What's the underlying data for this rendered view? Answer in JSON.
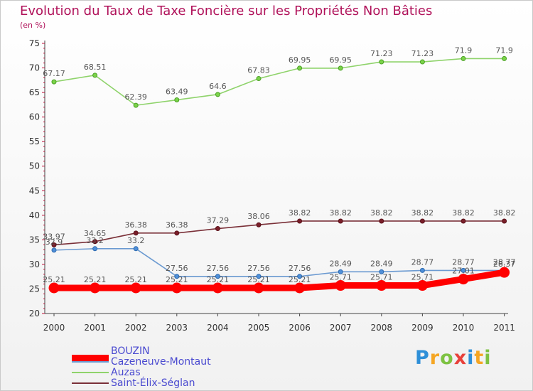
{
  "chart_data": {
    "type": "line",
    "title": "Evolution du Taux de Taxe Foncière sur les Propriétés Non Bâties",
    "ylabel": "(en %)",
    "xlabel": "",
    "ylim": [
      20,
      75
    ],
    "yticks": [
      "20",
      "25",
      "30",
      "35",
      "40",
      "45",
      "50",
      "55",
      "60",
      "65",
      "70",
      "75"
    ],
    "categories": [
      "2000",
      "2001",
      "2002",
      "2003",
      "2004",
      "2005",
      "2006",
      "2007",
      "2008",
      "2009",
      "2010",
      "2011"
    ],
    "series": [
      {
        "name": "BOUZIN",
        "color": "#ff0000",
        "values": [
          25.21,
          25.21,
          25.21,
          25.21,
          25.21,
          25.21,
          25.21,
          25.71,
          25.71,
          25.71,
          27.01,
          28.37
        ],
        "labels": [
          "25.21",
          "25.21",
          "25.21",
          "25.21",
          "25.21",
          "25.21",
          "25.21",
          "25.71",
          "25.71",
          "25.71",
          "27.01",
          "28.37"
        ]
      },
      {
        "name": "Cazeneuve-Montaut",
        "color": "#6b9ad1",
        "values": [
          32.9,
          33.2,
          33.2,
          27.56,
          27.56,
          27.56,
          27.56,
          28.49,
          28.49,
          28.77,
          28.77,
          28.77
        ],
        "labels": [
          "32.9",
          "33.2",
          "33.2",
          "27.56",
          "27.56",
          "27.56",
          "27.56",
          "28.49",
          "28.49",
          "28.77",
          "28.77",
          "28.77"
        ]
      },
      {
        "name": "Auzas",
        "color": "#8fd36b",
        "values": [
          67.17,
          68.51,
          62.39,
          63.49,
          64.6,
          67.83,
          69.95,
          69.95,
          71.23,
          71.23,
          71.9,
          71.9
        ],
        "labels": [
          "67.17",
          "68.51",
          "62.39",
          "63.49",
          "64.6",
          "67.83",
          "69.95",
          "69.95",
          "71.23",
          "71.23",
          "71.9",
          "71.9"
        ]
      },
      {
        "name": "Saint-Élix-Séglan",
        "color": "#7a3038",
        "values": [
          33.97,
          34.65,
          36.38,
          36.38,
          37.29,
          38.06,
          38.82,
          38.82,
          38.82,
          38.82,
          38.82,
          38.82
        ],
        "labels": [
          "33.97",
          "34.65",
          "36.38",
          "36.38",
          "37.29",
          "38.06",
          "38.82",
          "38.82",
          "38.82",
          "38.82",
          "38.82",
          "38.82"
        ]
      }
    ],
    "legend": [
      {
        "label": "BOUZIN",
        "color": "#ff0000",
        "text_color": "#4a4ad0"
      },
      {
        "label": "Cazeneuve-Montaut",
        "color": "#6b9ad1",
        "text_color": "#4a4ad0"
      },
      {
        "label": "Auzas",
        "color": "#8fd36b",
        "text_color": "#4a4ad0"
      },
      {
        "label": "Saint-Élix-Séglan",
        "color": "#7a3038",
        "text_color": "#4a4ad0"
      }
    ],
    "legend_position": "bottom-left",
    "grid": false
  },
  "brand": {
    "letters": [
      "P",
      "r",
      "o",
      "x",
      "i",
      "t",
      "i"
    ],
    "colors": [
      "#2e8fd8",
      "#f5a623",
      "#7dc242",
      "#e8413b",
      "#2e8fd8",
      "#f5a623",
      "#7dc242"
    ]
  }
}
